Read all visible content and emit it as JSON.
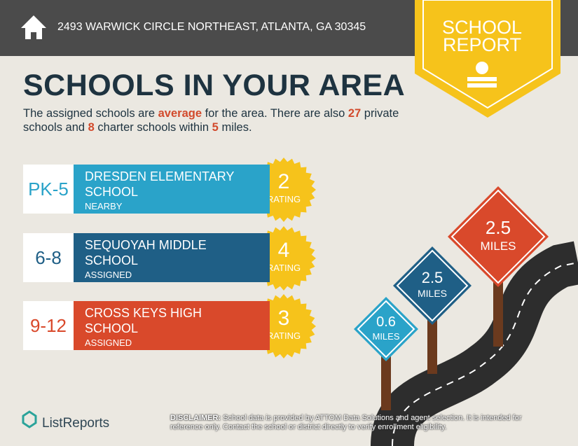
{
  "header": {
    "address": "2493 WARWICK CIRCLE NORTHEAST, ATLANTA, GA 30345"
  },
  "badge": {
    "line1": "SCHOOL",
    "line2": "REPORT"
  },
  "title": "SCHOOLS IN YOUR AREA",
  "summary": {
    "parts": [
      "The assigned schools are ",
      "average",
      " for the area. There are also ",
      27,
      " private schools and ",
      8,
      " charter schools within ",
      5,
      " miles."
    ]
  },
  "schools": [
    {
      "grades": "PK-5",
      "name_lines": [
        "DRESDEN ELEMENTARY",
        "SCHOOL"
      ],
      "status": "NEARBY",
      "rating": 2,
      "rating_label": "RATING"
    },
    {
      "grades": "6-8",
      "name_lines": [
        "SEQUOYAH MIDDLE",
        "SCHOOL"
      ],
      "status": "ASSIGNED",
      "rating": 4,
      "rating_label": "RATING"
    },
    {
      "grades": "9-12",
      "name_lines": [
        "CROSS KEYS HIGH",
        "SCHOOL"
      ],
      "status": "ASSIGNED",
      "rating": 3,
      "rating_label": "RATING"
    }
  ],
  "signs": [
    {
      "value": 0.6,
      "unit": "MILES"
    },
    {
      "value": 2.5,
      "unit": "MILES"
    },
    {
      "value": 2.5,
      "unit": "MILES"
    }
  ],
  "footer": {
    "brand": "ListReports",
    "disclaimer_label": "DISCLAIMER:",
    "disclaimer": "School data is provided by ATTOM Data Solutions and agent selection. It is intended for reference only. Contact the school or district directly to verify enrollment eligibility."
  }
}
